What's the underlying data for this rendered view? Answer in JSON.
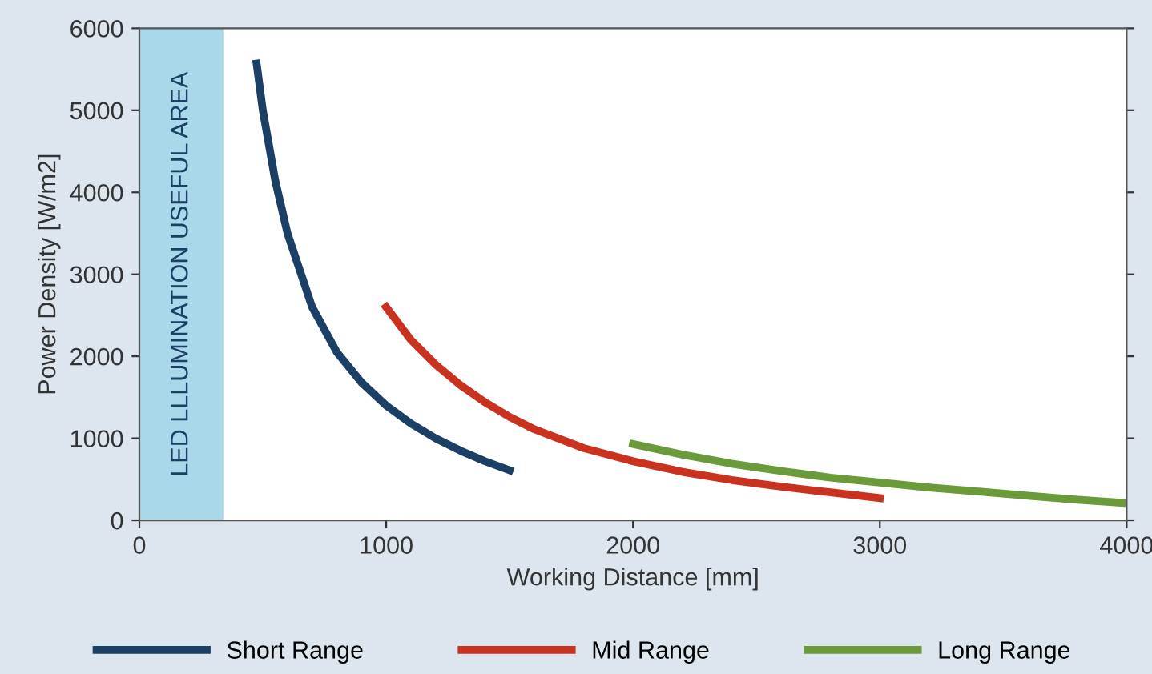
{
  "chart_data": {
    "type": "line",
    "xlabel": "Working Distance [mm]",
    "ylabel": "Power Density [W/m2]",
    "xlim": [
      0,
      4000
    ],
    "xticks": [
      0,
      1000,
      2000,
      3000,
      4000
    ],
    "ylim": [
      0,
      6000
    ],
    "yticks": [
      0,
      1000,
      2000,
      3000,
      4000,
      5000,
      6000
    ],
    "grid": false,
    "legend": "bottom",
    "marker": "none",
    "line_style": "solid",
    "bands": [
      {
        "axis": "x",
        "from": 0,
        "to": 340,
        "label": "LED LLLUMINATION USEFUL AREA",
        "color": "#a8d8ea"
      }
    ],
    "series": [
      {
        "name": "Short Range",
        "color": "#1c3f66",
        "x": [
          475,
          500,
          550,
          600,
          700,
          800,
          900,
          1000,
          1100,
          1200,
          1300,
          1400,
          1500
        ],
        "values": [
          5570,
          5000,
          4150,
          3500,
          2600,
          2050,
          1680,
          1400,
          1180,
          1000,
          850,
          720,
          610
        ]
      },
      {
        "name": "Mid Range",
        "color": "#c8321e",
        "x": [
          1000,
          1100,
          1200,
          1300,
          1400,
          1500,
          1600,
          1800,
          2000,
          2200,
          2400,
          2600,
          2800,
          3000
        ],
        "values": [
          2600,
          2200,
          1900,
          1650,
          1440,
          1260,
          1110,
          880,
          720,
          590,
          490,
          410,
          340,
          270
        ]
      },
      {
        "name": "Long Range",
        "color": "#6a9a3a",
        "x": [
          2000,
          2200,
          2400,
          2600,
          2800,
          3000,
          3200,
          3400,
          3600,
          3800,
          4000
        ],
        "values": [
          930,
          800,
          690,
          600,
          520,
          460,
          400,
          350,
          300,
          250,
          210
        ]
      }
    ]
  }
}
